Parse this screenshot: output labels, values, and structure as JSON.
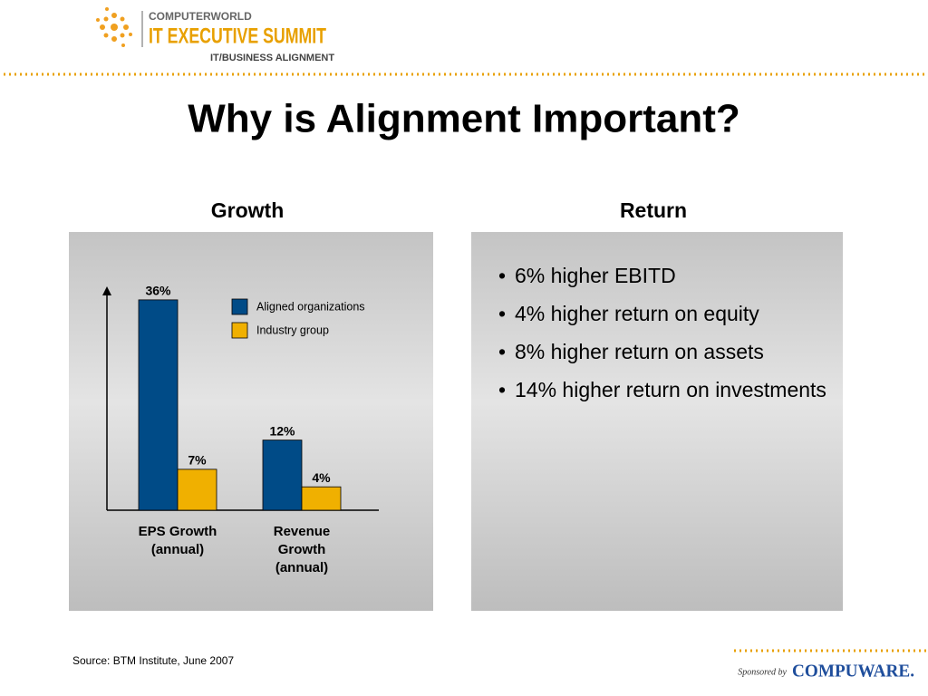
{
  "logo": {
    "brand": "COMPUTERWORLD",
    "event": "IT EXECUTIVE SUMMIT",
    "theme": "IT/BUSINESS ALIGNMENT"
  },
  "title": "Why is Alignment Important?",
  "growth_heading": "Growth",
  "return_heading": "Return",
  "return_bullets": [
    "6% higher EBITD",
    "4% higher return on equity",
    "8% higher return on assets",
    "14% higher return on investments"
  ],
  "source": "Source: BTM Institute, June 2007",
  "sponsor": {
    "label": "Sponsored by",
    "name": "COMPUWARE."
  },
  "chart_data": {
    "type": "bar",
    "categories": [
      "EPS Growth (annual)",
      "Revenue Growth (annual)"
    ],
    "series": [
      {
        "name": "Aligned organizations",
        "color": "#004b87",
        "values": [
          36,
          12
        ],
        "value_labels": [
          "36%",
          "12%"
        ]
      },
      {
        "name": "Industry group",
        "color": "#f0b000",
        "values": [
          7,
          4
        ],
        "value_labels": [
          "7%",
          "4%"
        ]
      }
    ],
    "ylim": [
      0,
      38
    ]
  }
}
